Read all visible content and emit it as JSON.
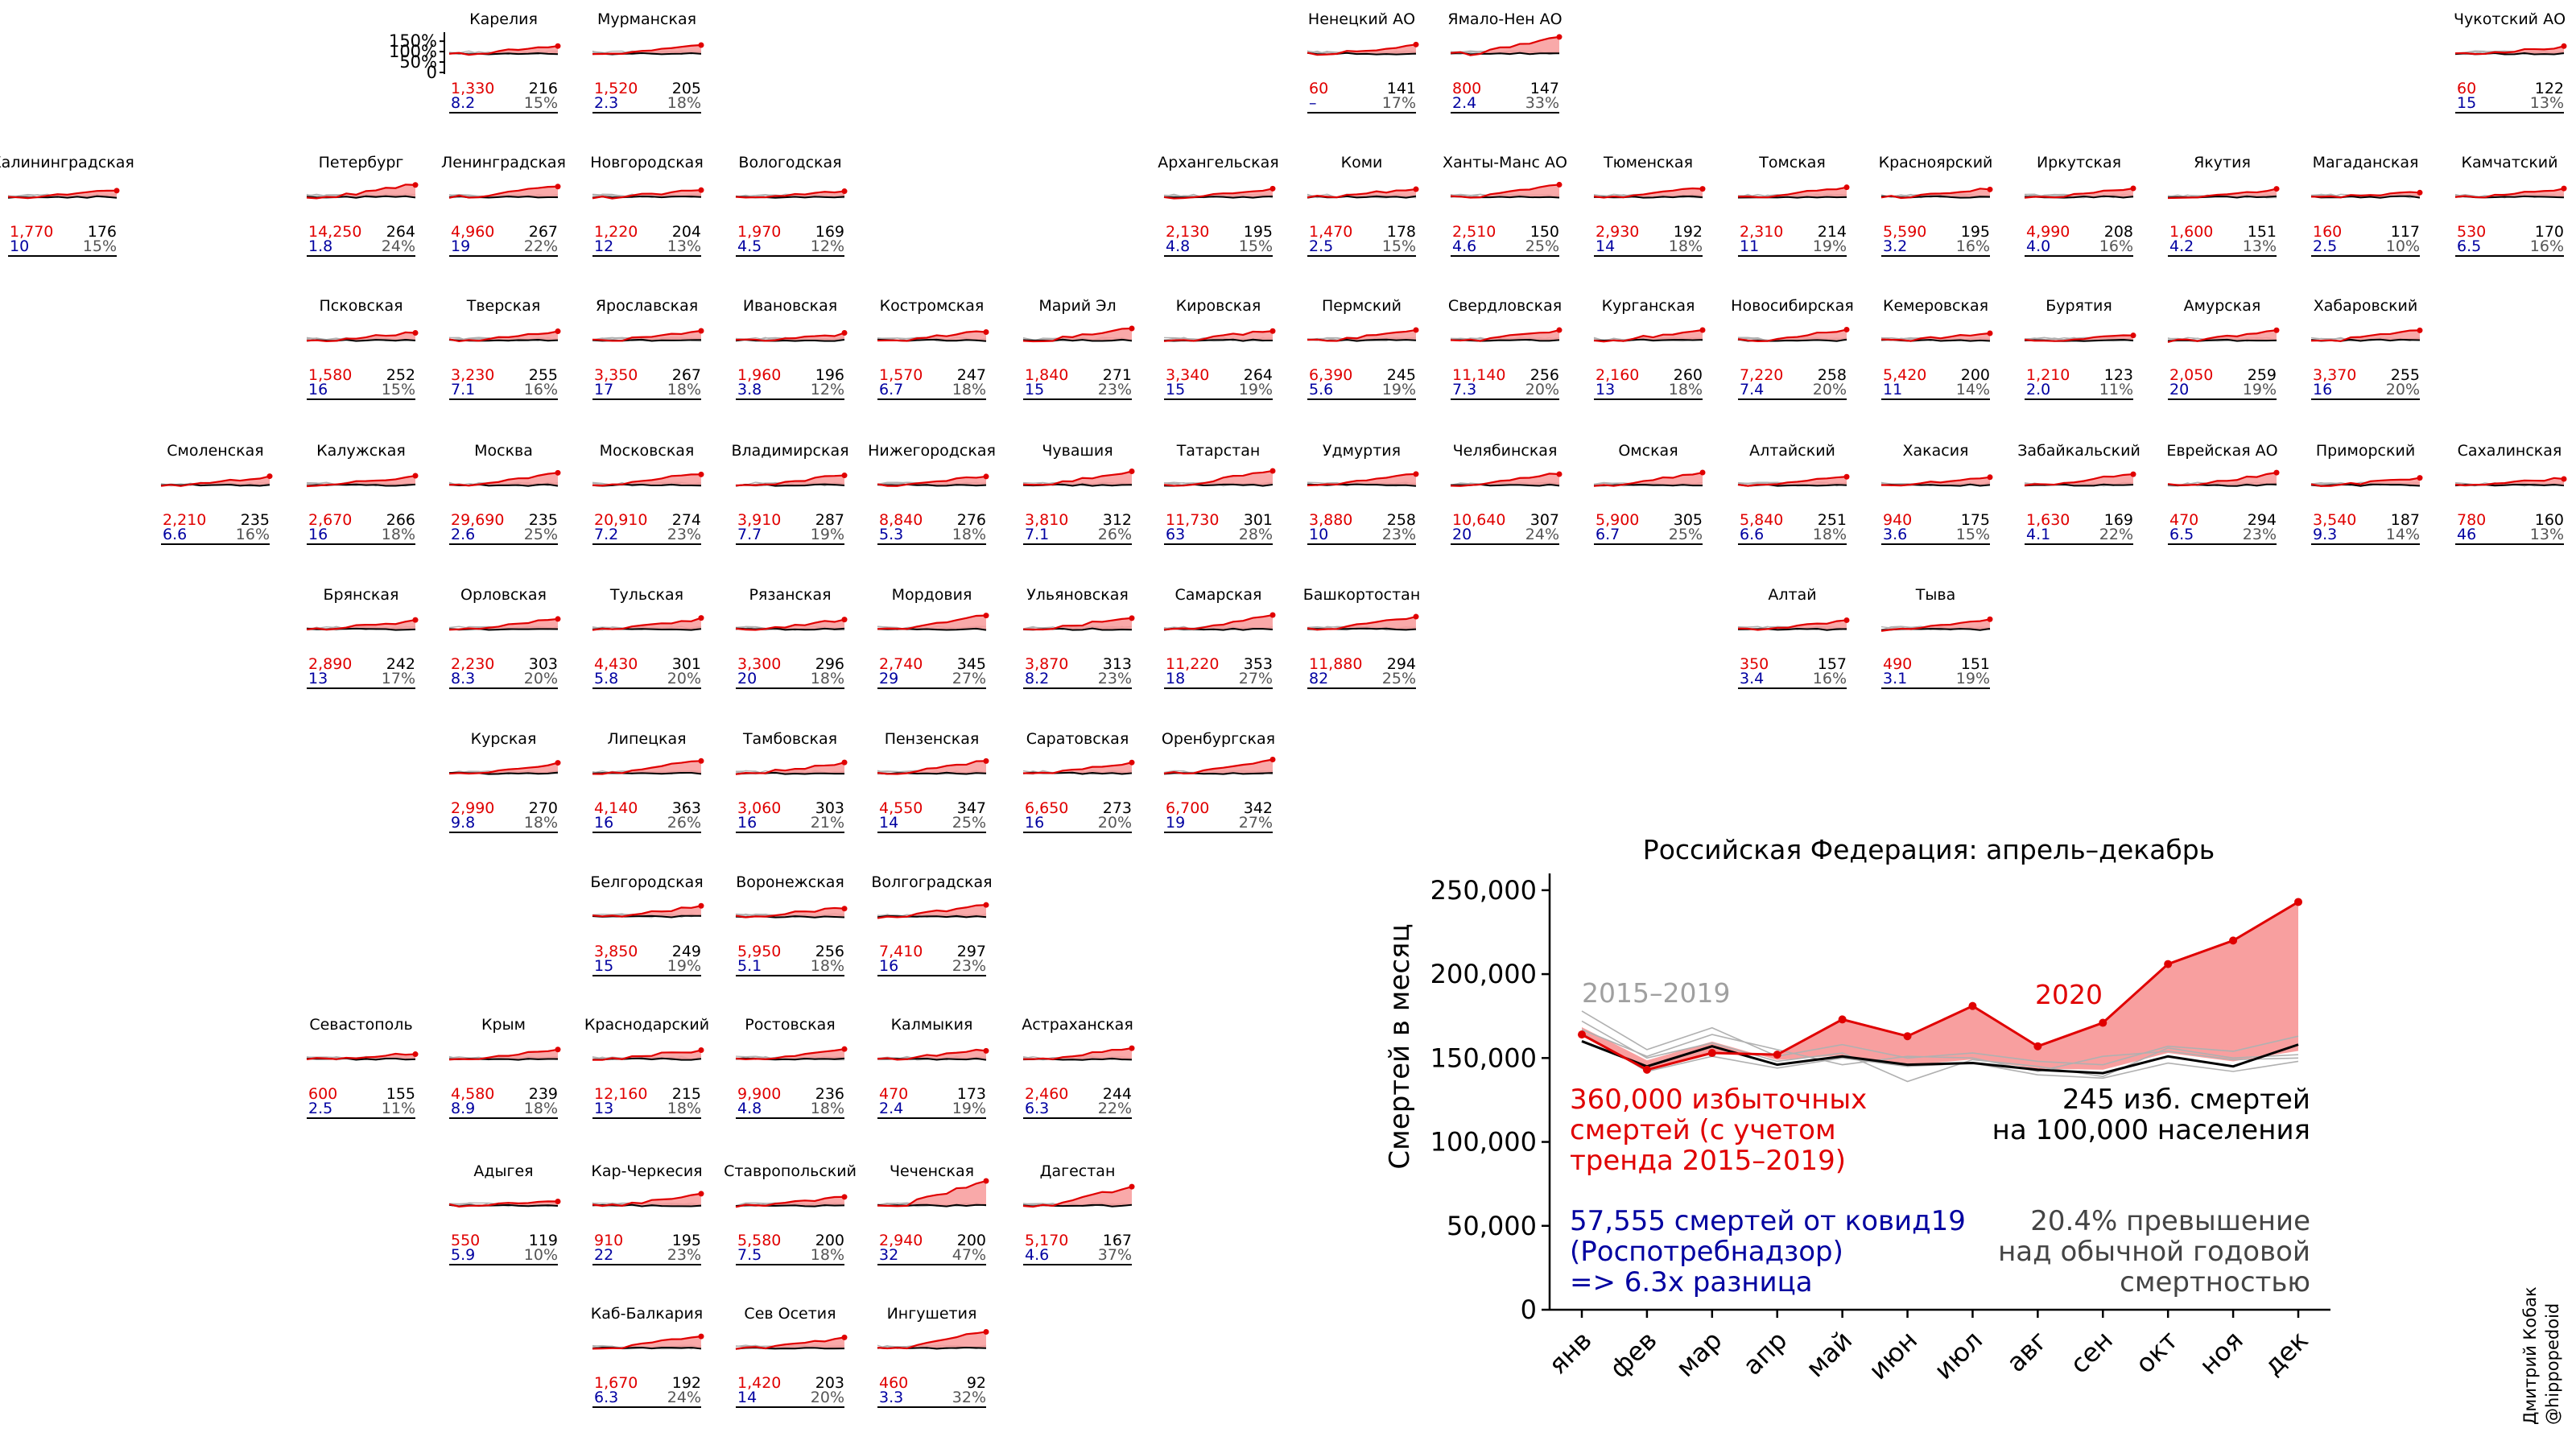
{
  "colors": {
    "red": "#e00000",
    "fill": "#f89a9a",
    "blue": "#0000a0",
    "gray": "#b0b0b0",
    "dark": "#000000"
  },
  "regions": [
    {
      "name": "Карелия",
      "col": 3,
      "row": 0,
      "excess": "1,330",
      "per100k": "216",
      "ratio": "8.2",
      "pct": "15%",
      "axis": true
    },
    {
      "name": "Мурманская",
      "col": 4,
      "row": 0,
      "excess": "1,520",
      "per100k": "205",
      "ratio": "2.3",
      "pct": "18%"
    },
    {
      "name": "Ненецкий АО",
      "col": 9,
      "row": 0,
      "excess": "60",
      "per100k": "141",
      "ratio": "–",
      "pct": "17%"
    },
    {
      "name": "Ямало-Нен АО",
      "col": 10,
      "row": 0,
      "excess": "800",
      "per100k": "147",
      "ratio": "2.4",
      "pct": "33%"
    },
    {
      "name": "Чукотский АО",
      "col": 17,
      "row": 0,
      "excess": "60",
      "per100k": "122",
      "ratio": "15",
      "pct": "13%"
    },
    {
      "name": "Калининградская",
      "col": 0,
      "row": 1,
      "excess": "1,770",
      "per100k": "176",
      "ratio": "10",
      "pct": "15%"
    },
    {
      "name": "Петербург",
      "col": 2,
      "row": 1,
      "excess": "14,250",
      "per100k": "264",
      "ratio": "1.8",
      "pct": "24%"
    },
    {
      "name": "Ленинградская",
      "col": 3,
      "row": 1,
      "excess": "4,960",
      "per100k": "267",
      "ratio": "19",
      "pct": "22%"
    },
    {
      "name": "Новгородская",
      "col": 4,
      "row": 1,
      "excess": "1,220",
      "per100k": "204",
      "ratio": "12",
      "pct": "13%"
    },
    {
      "name": "Вологодская",
      "col": 5,
      "row": 1,
      "excess": "1,970",
      "per100k": "169",
      "ratio": "4.5",
      "pct": "12%"
    },
    {
      "name": "Архангельская",
      "col": 8,
      "row": 1,
      "excess": "2,130",
      "per100k": "195",
      "ratio": "4.8",
      "pct": "15%"
    },
    {
      "name": "Коми",
      "col": 9,
      "row": 1,
      "excess": "1,470",
      "per100k": "178",
      "ratio": "2.5",
      "pct": "15%"
    },
    {
      "name": "Ханты-Манс АО",
      "col": 10,
      "row": 1,
      "excess": "2,510",
      "per100k": "150",
      "ratio": "4.6",
      "pct": "25%"
    },
    {
      "name": "Тюменская",
      "col": 11,
      "row": 1,
      "excess": "2,930",
      "per100k": "192",
      "ratio": "14",
      "pct": "18%"
    },
    {
      "name": "Томская",
      "col": 12,
      "row": 1,
      "excess": "2,310",
      "per100k": "214",
      "ratio": "11",
      "pct": "19%"
    },
    {
      "name": "Красноярский",
      "col": 13,
      "row": 1,
      "excess": "5,590",
      "per100k": "195",
      "ratio": "3.2",
      "pct": "16%"
    },
    {
      "name": "Иркутская",
      "col": 14,
      "row": 1,
      "excess": "4,990",
      "per100k": "208",
      "ratio": "4.0",
      "pct": "16%"
    },
    {
      "name": "Якутия",
      "col": 15,
      "row": 1,
      "excess": "1,600",
      "per100k": "151",
      "ratio": "4.2",
      "pct": "13%"
    },
    {
      "name": "Магаданская",
      "col": 16,
      "row": 1,
      "excess": "160",
      "per100k": "117",
      "ratio": "2.5",
      "pct": "10%"
    },
    {
      "name": "Камчатский",
      "col": 17,
      "row": 1,
      "excess": "530",
      "per100k": "170",
      "ratio": "6.5",
      "pct": "16%"
    },
    {
      "name": "Псковская",
      "col": 2,
      "row": 2,
      "excess": "1,580",
      "per100k": "252",
      "ratio": "16",
      "pct": "15%"
    },
    {
      "name": "Тверская",
      "col": 3,
      "row": 2,
      "excess": "3,230",
      "per100k": "255",
      "ratio": "7.1",
      "pct": "16%"
    },
    {
      "name": "Ярославская",
      "col": 4,
      "row": 2,
      "excess": "3,350",
      "per100k": "267",
      "ratio": "17",
      "pct": "18%"
    },
    {
      "name": "Ивановская",
      "col": 5,
      "row": 2,
      "excess": "1,960",
      "per100k": "196",
      "ratio": "3.8",
      "pct": "12%"
    },
    {
      "name": "Костромская",
      "col": 6,
      "row": 2,
      "excess": "1,570",
      "per100k": "247",
      "ratio": "6.7",
      "pct": "18%"
    },
    {
      "name": "Марий Эл",
      "col": 7,
      "row": 2,
      "excess": "1,840",
      "per100k": "271",
      "ratio": "15",
      "pct": "23%"
    },
    {
      "name": "Кировская",
      "col": 8,
      "row": 2,
      "excess": "3,340",
      "per100k": "264",
      "ratio": "15",
      "pct": "19%"
    },
    {
      "name": "Пермский",
      "col": 9,
      "row": 2,
      "excess": "6,390",
      "per100k": "245",
      "ratio": "5.6",
      "pct": "19%"
    },
    {
      "name": "Свердловская",
      "col": 10,
      "row": 2,
      "excess": "11,140",
      "per100k": "256",
      "ratio": "7.3",
      "pct": "20%"
    },
    {
      "name": "Курганская",
      "col": 11,
      "row": 2,
      "excess": "2,160",
      "per100k": "260",
      "ratio": "13",
      "pct": "18%"
    },
    {
      "name": "Новосибирская",
      "col": 12,
      "row": 2,
      "excess": "7,220",
      "per100k": "258",
      "ratio": "7.4",
      "pct": "20%"
    },
    {
      "name": "Кемеровская",
      "col": 13,
      "row": 2,
      "excess": "5,420",
      "per100k": "200",
      "ratio": "11",
      "pct": "14%"
    },
    {
      "name": "Бурятия",
      "col": 14,
      "row": 2,
      "excess": "1,210",
      "per100k": "123",
      "ratio": "2.0",
      "pct": "11%"
    },
    {
      "name": "Амурская",
      "col": 15,
      "row": 2,
      "excess": "2,050",
      "per100k": "259",
      "ratio": "20",
      "pct": "19%"
    },
    {
      "name": "Хабаровский",
      "col": 16,
      "row": 2,
      "excess": "3,370",
      "per100k": "255",
      "ratio": "16",
      "pct": "20%"
    },
    {
      "name": "Смоленская",
      "col": 1,
      "row": 3,
      "excess": "2,210",
      "per100k": "235",
      "ratio": "6.6",
      "pct": "16%"
    },
    {
      "name": "Калужская",
      "col": 2,
      "row": 3,
      "excess": "2,670",
      "per100k": "266",
      "ratio": "16",
      "pct": "18%"
    },
    {
      "name": "Москва",
      "col": 3,
      "row": 3,
      "excess": "29,690",
      "per100k": "235",
      "ratio": "2.6",
      "pct": "25%"
    },
    {
      "name": "Московская",
      "col": 4,
      "row": 3,
      "excess": "20,910",
      "per100k": "274",
      "ratio": "7.2",
      "pct": "23%"
    },
    {
      "name": "Владимирская",
      "col": 5,
      "row": 3,
      "excess": "3,910",
      "per100k": "287",
      "ratio": "7.7",
      "pct": "19%"
    },
    {
      "name": "Нижегородская",
      "col": 6,
      "row": 3,
      "excess": "8,840",
      "per100k": "276",
      "ratio": "5.3",
      "pct": "18%"
    },
    {
      "name": "Чувашия",
      "col": 7,
      "row": 3,
      "excess": "3,810",
      "per100k": "312",
      "ratio": "7.1",
      "pct": "26%"
    },
    {
      "name": "Татарстан",
      "col": 8,
      "row": 3,
      "excess": "11,730",
      "per100k": "301",
      "ratio": "63",
      "pct": "28%"
    },
    {
      "name": "Удмуртия",
      "col": 9,
      "row": 3,
      "excess": "3,880",
      "per100k": "258",
      "ratio": "10",
      "pct": "23%"
    },
    {
      "name": "Челябинская",
      "col": 10,
      "row": 3,
      "excess": "10,640",
      "per100k": "307",
      "ratio": "20",
      "pct": "24%"
    },
    {
      "name": "Омская",
      "col": 11,
      "row": 3,
      "excess": "5,900",
      "per100k": "305",
      "ratio": "6.7",
      "pct": "25%"
    },
    {
      "name": "Алтайский",
      "col": 12,
      "row": 3,
      "excess": "5,840",
      "per100k": "251",
      "ratio": "6.6",
      "pct": "18%"
    },
    {
      "name": "Хакасия",
      "col": 13,
      "row": 3,
      "excess": "940",
      "per100k": "175",
      "ratio": "3.6",
      "pct": "15%"
    },
    {
      "name": "Забайкальский",
      "col": 14,
      "row": 3,
      "excess": "1,630",
      "per100k": "169",
      "ratio": "4.1",
      "pct": "22%"
    },
    {
      "name": "Еврейская АО",
      "col": 15,
      "row": 3,
      "excess": "470",
      "per100k": "294",
      "ratio": "6.5",
      "pct": "23%"
    },
    {
      "name": "Приморский",
      "col": 16,
      "row": 3,
      "excess": "3,540",
      "per100k": "187",
      "ratio": "9.3",
      "pct": "14%"
    },
    {
      "name": "Сахалинская",
      "col": 17,
      "row": 3,
      "excess": "780",
      "per100k": "160",
      "ratio": "46",
      "pct": "13%"
    },
    {
      "name": "Брянская",
      "col": 2,
      "row": 4,
      "excess": "2,890",
      "per100k": "242",
      "ratio": "13",
      "pct": "17%"
    },
    {
      "name": "Орловская",
      "col": 3,
      "row": 4,
      "excess": "2,230",
      "per100k": "303",
      "ratio": "8.3",
      "pct": "20%"
    },
    {
      "name": "Тульская",
      "col": 4,
      "row": 4,
      "excess": "4,430",
      "per100k": "301",
      "ratio": "5.8",
      "pct": "20%"
    },
    {
      "name": "Рязанская",
      "col": 5,
      "row": 4,
      "excess": "3,300",
      "per100k": "296",
      "ratio": "20",
      "pct": "18%"
    },
    {
      "name": "Мордовия",
      "col": 6,
      "row": 4,
      "excess": "2,740",
      "per100k": "345",
      "ratio": "29",
      "pct": "27%"
    },
    {
      "name": "Ульяновская",
      "col": 7,
      "row": 4,
      "excess": "3,870",
      "per100k": "313",
      "ratio": "8.2",
      "pct": "23%"
    },
    {
      "name": "Самарская",
      "col": 8,
      "row": 4,
      "excess": "11,220",
      "per100k": "353",
      "ratio": "18",
      "pct": "27%"
    },
    {
      "name": "Башкортостан",
      "col": 9,
      "row": 4,
      "excess": "11,880",
      "per100k": "294",
      "ratio": "82",
      "pct": "25%"
    },
    {
      "name": "Алтай",
      "col": 12,
      "row": 4,
      "excess": "350",
      "per100k": "157",
      "ratio": "3.4",
      "pct": "16%"
    },
    {
      "name": "Тыва",
      "col": 13,
      "row": 4,
      "excess": "490",
      "per100k": "151",
      "ratio": "3.1",
      "pct": "19%"
    },
    {
      "name": "Курская",
      "col": 3,
      "row": 5,
      "excess": "2,990",
      "per100k": "270",
      "ratio": "9.8",
      "pct": "18%"
    },
    {
      "name": "Липецкая",
      "col": 4,
      "row": 5,
      "excess": "4,140",
      "per100k": "363",
      "ratio": "16",
      "pct": "26%"
    },
    {
      "name": "Тамбовская",
      "col": 5,
      "row": 5,
      "excess": "3,060",
      "per100k": "303",
      "ratio": "16",
      "pct": "21%"
    },
    {
      "name": "Пензенская",
      "col": 6,
      "row": 5,
      "excess": "4,550",
      "per100k": "347",
      "ratio": "14",
      "pct": "25%"
    },
    {
      "name": "Саратовская",
      "col": 7,
      "row": 5,
      "excess": "6,650",
      "per100k": "273",
      "ratio": "16",
      "pct": "20%"
    },
    {
      "name": "Оренбургская",
      "col": 8,
      "row": 5,
      "excess": "6,700",
      "per100k": "342",
      "ratio": "19",
      "pct": "27%"
    },
    {
      "name": "Белгородская",
      "col": 4,
      "row": 6,
      "excess": "3,850",
      "per100k": "249",
      "ratio": "15",
      "pct": "19%"
    },
    {
      "name": "Воронежская",
      "col": 5,
      "row": 6,
      "excess": "5,950",
      "per100k": "256",
      "ratio": "5.1",
      "pct": "18%"
    },
    {
      "name": "Волгоградская",
      "col": 6,
      "row": 6,
      "excess": "7,410",
      "per100k": "297",
      "ratio": "16",
      "pct": "23%"
    },
    {
      "name": "Севастополь",
      "col": 2,
      "row": 7,
      "excess": "600",
      "per100k": "155",
      "ratio": "2.5",
      "pct": "11%"
    },
    {
      "name": "Крым",
      "col": 3,
      "row": 7,
      "excess": "4,580",
      "per100k": "239",
      "ratio": "8.9",
      "pct": "18%"
    },
    {
      "name": "Краснодарский",
      "col": 4,
      "row": 7,
      "excess": "12,160",
      "per100k": "215",
      "ratio": "13",
      "pct": "18%"
    },
    {
      "name": "Ростовская",
      "col": 5,
      "row": 7,
      "excess": "9,900",
      "per100k": "236",
      "ratio": "4.8",
      "pct": "18%"
    },
    {
      "name": "Калмыкия",
      "col": 6,
      "row": 7,
      "excess": "470",
      "per100k": "173",
      "ratio": "2.4",
      "pct": "19%"
    },
    {
      "name": "Астраханская",
      "col": 7,
      "row": 7,
      "excess": "2,460",
      "per100k": "244",
      "ratio": "6.3",
      "pct": "22%"
    },
    {
      "name": "Адыгея",
      "col": 3,
      "row": 8,
      "excess": "550",
      "per100k": "119",
      "ratio": "5.9",
      "pct": "10%"
    },
    {
      "name": "Кар-Черкесия",
      "col": 4,
      "row": 8,
      "excess": "910",
      "per100k": "195",
      "ratio": "22",
      "pct": "23%"
    },
    {
      "name": "Ставропольский",
      "col": 5,
      "row": 8,
      "excess": "5,580",
      "per100k": "200",
      "ratio": "7.5",
      "pct": "18%"
    },
    {
      "name": "Чеченская",
      "col": 6,
      "row": 8,
      "excess": "2,940",
      "per100k": "200",
      "ratio": "32",
      "pct": "47%"
    },
    {
      "name": "Дагестан",
      "col": 7,
      "row": 8,
      "excess": "5,170",
      "per100k": "167",
      "ratio": "4.6",
      "pct": "37%"
    },
    {
      "name": "Каб-Балкария",
      "col": 4,
      "row": 9,
      "excess": "1,670",
      "per100k": "192",
      "ratio": "6.3",
      "pct": "24%"
    },
    {
      "name": "Сев Осетия",
      "col": 5,
      "row": 9,
      "excess": "1,420",
      "per100k": "203",
      "ratio": "14",
      "pct": "20%"
    },
    {
      "name": "Ингушетия",
      "col": 6,
      "row": 9,
      "excess": "460",
      "per100k": "92",
      "ratio": "3.3",
      "pct": "32%"
    }
  ],
  "small_axis": {
    "ticks": [
      "150%",
      "100%",
      "50%",
      "0"
    ]
  },
  "chart_data": {
    "type": "line",
    "title": "Российская Федерация: апрель–декабрь",
    "ylabel": "Смертей в месяц",
    "ylim": [
      0,
      260000
    ],
    "yticks": [
      "0",
      "50,000",
      "100,000",
      "150,000",
      "200,000",
      "250,000"
    ],
    "categories": [
      "янв",
      "фев",
      "мар",
      "апр",
      "май",
      "июн",
      "июл",
      "авг",
      "сен",
      "окт",
      "ноя",
      "дек"
    ],
    "series": [
      {
        "name": "2020",
        "values": [
          164000,
          143000,
          153000,
          152000,
          173000,
          163000,
          181000,
          157000,
          171000,
          206000,
          220000,
          243000
        ]
      },
      {
        "name": "",
        "values": [
          160000,
          145000,
          157000,
          146000,
          151000,
          146000,
          147000,
          143000,
          141000,
          151000,
          145000,
          158000
        ]
      },
      {
        "name": "",
        "values": [
          178000,
          155000,
          168000,
          151000,
          158000,
          150000,
          153000,
          148000,
          146000,
          157000,
          154000,
          163000
        ]
      },
      {
        "name": "",
        "values": [
          167000,
          151000,
          164000,
          155000,
          146000,
          151000,
          150000,
          142000,
          151000,
          154000,
          149000,
          150000
        ]
      },
      {
        "name": "",
        "values": [
          172000,
          150000,
          159000,
          148000,
          153000,
          136000,
          149000,
          145000,
          139000,
          156000,
          150000,
          152000
        ]
      },
      {
        "name": "",
        "values": [
          165000,
          142000,
          151000,
          144000,
          150000,
          145000,
          147000,
          140000,
          138000,
          147000,
          142000,
          148000
        ]
      }
    ],
    "series_labels": {
      "gray": "2015–2019",
      "red": "2020"
    },
    "annotations": {
      "excess": "360,000 избыточных\nсмертей (с учетом\nтренда 2015–2019)",
      "covid": "57,555 смертей от ковид19\n(Роспотребнадзор)\n=> 6.3x разница",
      "per100k": "245 изб. смертей\nна 100,000 населения",
      "pct": "20.4% превышение\nнад обычной годовой\nсмертностью"
    }
  },
  "credit": {
    "line1": "Дмитрий Кобак",
    "line2": "@hippopedoid"
  }
}
